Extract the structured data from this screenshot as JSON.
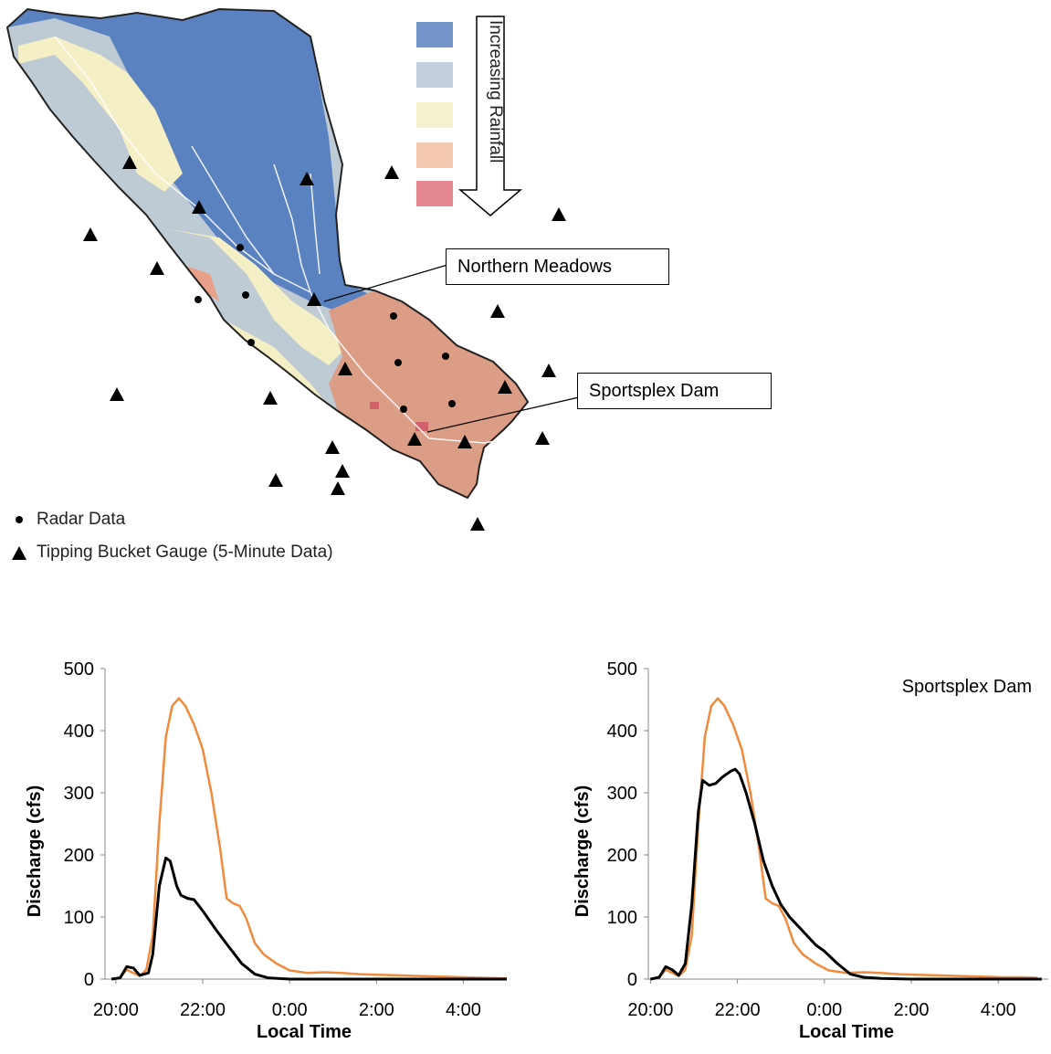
{
  "map": {
    "arrow_label": "Increasing Rainfall",
    "callouts": {
      "northern": "Northern Meadows",
      "sportsplex": "Sportsplex Dam"
    },
    "legend": {
      "radar": "Radar Data",
      "gauge": "Tipping Bucket Gauge (5-Minute Data)"
    },
    "rain_colors": [
      "#5b82c0",
      "#b9c7d6",
      "#f4efc4",
      "#f3bfa1",
      "#e0727a"
    ]
  },
  "colors": {
    "orange": "#f08a3c",
    "black": "#000000"
  },
  "chart_data": [
    {
      "type": "line",
      "title": "",
      "xlabel": "Local Time",
      "ylabel": "Discharge (cfs)",
      "ylim": [
        0,
        500
      ],
      "yticks": [
        "0",
        "100",
        "200",
        "300",
        "400",
        "500"
      ],
      "xticks": [
        "20:00",
        "22:00",
        "0:00",
        "2:00",
        "4:00"
      ],
      "x_hours_range": [
        19.75,
        29.0
      ],
      "series": [
        {
          "color": "orange",
          "points": [
            [
              19.9,
              0
            ],
            [
              20.1,
              3
            ],
            [
              20.25,
              15
            ],
            [
              20.4,
              10
            ],
            [
              20.55,
              5
            ],
            [
              20.7,
              15
            ],
            [
              20.85,
              70
            ],
            [
              21.0,
              250
            ],
            [
              21.15,
              390
            ],
            [
              21.3,
              440
            ],
            [
              21.45,
              452
            ],
            [
              21.6,
              440
            ],
            [
              21.8,
              410
            ],
            [
              22.0,
              370
            ],
            [
              22.2,
              300
            ],
            [
              22.4,
              210
            ],
            [
              22.55,
              130
            ],
            [
              22.7,
              122
            ],
            [
              22.85,
              118
            ],
            [
              23.0,
              98
            ],
            [
              23.2,
              58
            ],
            [
              23.4,
              40
            ],
            [
              23.7,
              25
            ],
            [
              24.0,
              14
            ],
            [
              24.4,
              10
            ],
            [
              24.8,
              11
            ],
            [
              25.2,
              10
            ],
            [
              25.6,
              8
            ],
            [
              26.0,
              7
            ],
            [
              26.5,
              6
            ],
            [
              27.0,
              5
            ],
            [
              27.5,
              4
            ],
            [
              28.0,
              3
            ],
            [
              28.5,
              2
            ],
            [
              29.0,
              1
            ]
          ]
        },
        {
          "color": "black",
          "points": [
            [
              19.9,
              0
            ],
            [
              20.1,
              2
            ],
            [
              20.25,
              20
            ],
            [
              20.4,
              18
            ],
            [
              20.55,
              6
            ],
            [
              20.75,
              10
            ],
            [
              20.85,
              40
            ],
            [
              21.0,
              150
            ],
            [
              21.15,
              195
            ],
            [
              21.25,
              190
            ],
            [
              21.4,
              150
            ],
            [
              21.5,
              135
            ],
            [
              21.65,
              130
            ],
            [
              21.8,
              128
            ],
            [
              22.0,
              110
            ],
            [
              22.3,
              80
            ],
            [
              22.6,
              52
            ],
            [
              22.9,
              25
            ],
            [
              23.2,
              8
            ],
            [
              23.5,
              2
            ],
            [
              24.0,
              0
            ],
            [
              29.0,
              0
            ]
          ]
        }
      ]
    },
    {
      "type": "line",
      "title": "Sportsplex Dam",
      "xlabel": "Local Time",
      "ylabel": "Discharge (cfs)",
      "ylim": [
        0,
        500
      ],
      "yticks": [
        "0",
        "100",
        "200",
        "300",
        "400",
        "500"
      ],
      "xticks": [
        "20:00",
        "22:00",
        "0:00",
        "2:00",
        "4:00"
      ],
      "x_hours_range": [
        19.95,
        29.15
      ],
      "series": [
        {
          "color": "orange",
          "points": [
            [
              20.0,
              0
            ],
            [
              20.2,
              3
            ],
            [
              20.35,
              15
            ],
            [
              20.5,
              10
            ],
            [
              20.65,
              5
            ],
            [
              20.8,
              15
            ],
            [
              20.95,
              70
            ],
            [
              21.1,
              250
            ],
            [
              21.25,
              390
            ],
            [
              21.4,
              440
            ],
            [
              21.55,
              452
            ],
            [
              21.7,
              440
            ],
            [
              21.9,
              410
            ],
            [
              22.1,
              370
            ],
            [
              22.3,
              300
            ],
            [
              22.5,
              210
            ],
            [
              22.65,
              130
            ],
            [
              22.8,
              122
            ],
            [
              22.95,
              118
            ],
            [
              23.1,
              98
            ],
            [
              23.3,
              58
            ],
            [
              23.5,
              40
            ],
            [
              23.8,
              25
            ],
            [
              24.1,
              14
            ],
            [
              24.5,
              10
            ],
            [
              24.9,
              11
            ],
            [
              25.3,
              10
            ],
            [
              25.7,
              8
            ],
            [
              26.1,
              7
            ],
            [
              26.6,
              6
            ],
            [
              27.1,
              5
            ],
            [
              27.6,
              4
            ],
            [
              28.1,
              3
            ],
            [
              28.6,
              3
            ],
            [
              28.9,
              2
            ]
          ]
        },
        {
          "color": "black",
          "points": [
            [
              20.0,
              0
            ],
            [
              20.2,
              3
            ],
            [
              20.35,
              20
            ],
            [
              20.5,
              15
            ],
            [
              20.65,
              6
            ],
            [
              20.8,
              25
            ],
            [
              20.95,
              120
            ],
            [
              21.1,
              270
            ],
            [
              21.2,
              320
            ],
            [
              21.35,
              312
            ],
            [
              21.5,
              315
            ],
            [
              21.65,
              325
            ],
            [
              21.85,
              335
            ],
            [
              21.95,
              338
            ],
            [
              22.05,
              330
            ],
            [
              22.2,
              300
            ],
            [
              22.4,
              250
            ],
            [
              22.6,
              190
            ],
            [
              22.8,
              150
            ],
            [
              23.0,
              120
            ],
            [
              23.2,
              100
            ],
            [
              23.4,
              85
            ],
            [
              23.6,
              70
            ],
            [
              23.8,
              55
            ],
            [
              24.0,
              45
            ],
            [
              24.3,
              25
            ],
            [
              24.6,
              8
            ],
            [
              24.9,
              3
            ],
            [
              25.3,
              1
            ],
            [
              26.0,
              0
            ],
            [
              29.0,
              0
            ]
          ]
        }
      ]
    }
  ]
}
